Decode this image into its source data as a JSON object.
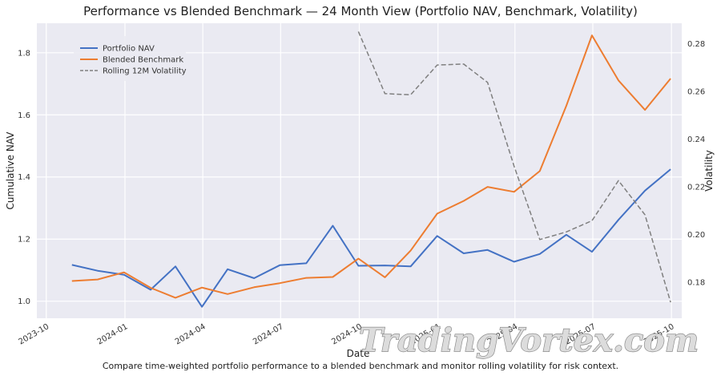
{
  "chart_data": {
    "type": "line",
    "title": "Performance vs Blended Benchmark — 24 Month View (Portfolio NAV, Benchmark, Volatility)",
    "xlabel": "Date",
    "ylabel": "Cumulative NAV",
    "y2label": "Volatility",
    "caption": "Compare time-weighted portfolio performance to a blended benchmark and monitor rolling volatility for risk context.",
    "x_ticks": [
      "2023-10",
      "2024-01",
      "2024-04",
      "2024-07",
      "2024-10",
      "2025-01",
      "2025-04",
      "2025-07",
      "2025-10"
    ],
    "y_ticks": [
      "1.0",
      "1.2",
      "1.4",
      "1.6",
      "1.8"
    ],
    "y2_ticks": [
      "0.18",
      "0.20",
      "0.22",
      "0.24",
      "0.26",
      "0.28"
    ],
    "xlim": [
      "2023-09-20",
      "2025-10-13"
    ],
    "ylim": [
      0.945,
      1.895
    ],
    "y2lim": [
      0.1648,
      0.2885
    ],
    "grid": true,
    "legend_position": "upper-left",
    "x": [
      "2023-10-31",
      "2023-11-30",
      "2023-12-31",
      "2024-01-31",
      "2024-02-29",
      "2024-03-31",
      "2024-04-30",
      "2024-05-31",
      "2024-06-30",
      "2024-07-31",
      "2024-08-31",
      "2024-09-30",
      "2024-10-31",
      "2024-11-30",
      "2024-12-31",
      "2025-01-31",
      "2025-02-28",
      "2025-03-31",
      "2025-04-30",
      "2025-05-31",
      "2025-06-30",
      "2025-07-31",
      "2025-08-31",
      "2025-09-30"
    ],
    "series": [
      {
        "name": "Portfolio NAV",
        "axis": "left",
        "color": "#4472c4",
        "style": "solid",
        "values": [
          1.117,
          1.098,
          1.085,
          1.037,
          1.112,
          0.982,
          1.103,
          1.074,
          1.116,
          1.122,
          1.243,
          1.114,
          1.115,
          1.112,
          1.21,
          1.154,
          1.165,
          1.127,
          1.152,
          1.214,
          1.159,
          1.262,
          1.356,
          1.425
        ]
      },
      {
        "name": "Blended Benchmark",
        "axis": "left",
        "color": "#ed7d31",
        "style": "solid",
        "values": [
          1.065,
          1.07,
          1.093,
          1.043,
          1.011,
          1.044,
          1.023,
          1.045,
          1.058,
          1.075,
          1.078,
          1.137,
          1.077,
          1.163,
          1.282,
          1.323,
          1.368,
          1.352,
          1.419,
          1.629,
          1.856,
          1.711,
          1.616,
          1.717
        ]
      },
      {
        "name": "Rolling 12M Volatility",
        "axis": "right",
        "color": "#7f7f7f",
        "style": "dashed",
        "values": [
          null,
          null,
          null,
          null,
          null,
          null,
          null,
          null,
          null,
          null,
          null,
          0.285,
          0.259,
          0.2585,
          0.271,
          0.2714,
          0.2637,
          0.2286,
          0.1978,
          0.201,
          0.2057,
          0.2225,
          0.2082,
          0.1715
        ]
      }
    ]
  },
  "watermark": "TradingVortex.com"
}
